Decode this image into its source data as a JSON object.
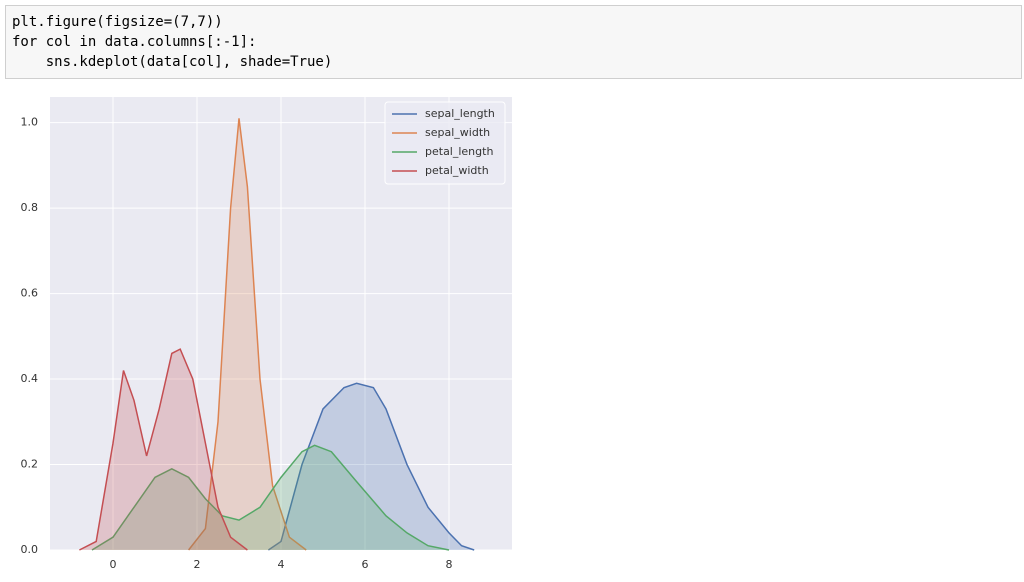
{
  "code": {
    "lines": [
      "plt.figure(figsize=(7,7))",
      "for col in data.columns[:-1]:",
      "    sns.kdeplot(data[col], shade=True)"
    ]
  },
  "chart_data": {
    "type": "kde",
    "xlim": [
      -1.5,
      9.5
    ],
    "xticks": [
      0,
      2,
      4,
      6,
      8
    ],
    "ylim": [
      0,
      1.06
    ],
    "yticks": [
      {
        "value": 0,
        "label": "0.0"
      },
      {
        "value": 0.2,
        "label": "0.2"
      },
      {
        "value": 0.4,
        "label": "0.4"
      },
      {
        "value": 0.6,
        "label": "0.6"
      },
      {
        "value": 0.8,
        "label": "0.8"
      },
      {
        "value": 1,
        "label": "1.0"
      }
    ],
    "grid": true,
    "legend": "upper right",
    "series": [
      {
        "name": "sepal_length",
        "color": "#4c72b0",
        "x": [
          3.7,
          4.0,
          4.5,
          5.0,
          5.5,
          5.8,
          6.2,
          6.5,
          7.0,
          7.5,
          8.0,
          8.3,
          8.6
        ],
        "values": [
          0,
          0.02,
          0.2,
          0.33,
          0.38,
          0.39,
          0.38,
          0.33,
          0.2,
          0.1,
          0.04,
          0.01,
          0
        ]
      },
      {
        "name": "sepal_width",
        "color": "#dd8452",
        "x": [
          1.8,
          2.2,
          2.5,
          2.8,
          3.0,
          3.2,
          3.5,
          3.8,
          4.2,
          4.6
        ],
        "values": [
          0,
          0.05,
          0.3,
          0.8,
          1.01,
          0.85,
          0.4,
          0.15,
          0.03,
          0
        ]
      },
      {
        "name": "petal_length",
        "color": "#55a868",
        "x": [
          -0.5,
          0,
          0.5,
          1.0,
          1.4,
          1.8,
          2.2,
          2.6,
          3.0,
          3.5,
          4.0,
          4.5,
          4.8,
          5.2,
          5.8,
          6.5,
          7.0,
          7.5,
          8.0
        ],
        "values": [
          0,
          0.03,
          0.1,
          0.17,
          0.19,
          0.17,
          0.12,
          0.08,
          0.07,
          0.1,
          0.17,
          0.23,
          0.245,
          0.23,
          0.16,
          0.08,
          0.04,
          0.01,
          0
        ]
      },
      {
        "name": "petal_width",
        "color": "#c44e52",
        "x": [
          -0.8,
          -0.4,
          0,
          0.25,
          0.5,
          0.8,
          1.1,
          1.4,
          1.6,
          1.9,
          2.2,
          2.5,
          2.8,
          3.2
        ],
        "values": [
          0,
          0.02,
          0.25,
          0.42,
          0.35,
          0.22,
          0.33,
          0.46,
          0.47,
          0.4,
          0.25,
          0.1,
          0.03,
          0
        ]
      }
    ]
  }
}
